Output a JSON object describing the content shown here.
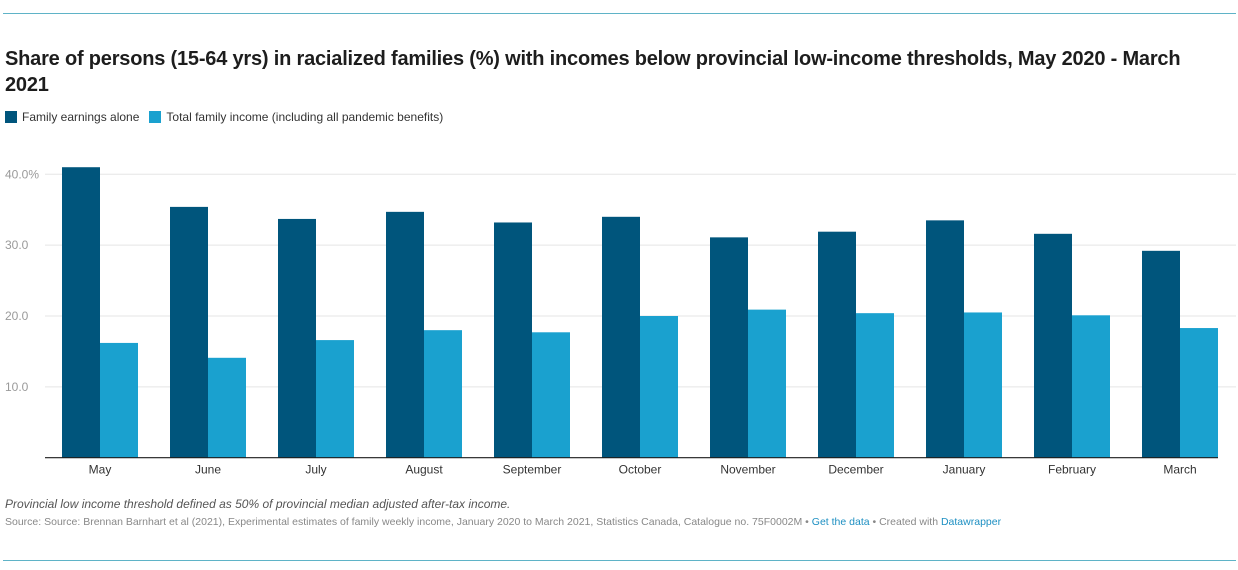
{
  "header": {
    "title": "Share of persons (15-64 yrs) in racialized families (%) with incomes below provincial low-income thresholds, May 2020 - March 2021"
  },
  "legend": [
    {
      "label": "Family earnings alone",
      "color": "#00557c"
    },
    {
      "label": "Total family income (including all pandemic benefits)",
      "color": "#1aa1cf"
    }
  ],
  "footer": {
    "note": "Provincial low income threshold defined as 50% of provincial median adjusted after-tax income.",
    "source_text": "Source: Source: Brennan Barnhart et al (2021), Experimental estimates of family weekly income, January 2020 to March 2021, Statistics Canada, Catalogue no. 75F0002M",
    "separator": " • ",
    "get_data_label": "Get the data",
    "created_with_prefix": "Created with ",
    "datawrapper_label": "Datawrapper"
  },
  "chart_data": {
    "type": "bar",
    "title": "Share of persons (15-64 yrs) in racialized families (%) with incomes below provincial low-income thresholds, May 2020 - March 2021",
    "xlabel": "",
    "ylabel": "",
    "ylim": [
      0,
      40
    ],
    "yticks": [
      10,
      20,
      30,
      40
    ],
    "ytick_labels": [
      "10.0",
      "20.0",
      "30.0",
      "40.0%"
    ],
    "grid": true,
    "legend_position": "top-left",
    "categories": [
      "May",
      "June",
      "July",
      "August",
      "September",
      "October",
      "November",
      "December",
      "January",
      "February",
      "March"
    ],
    "series": [
      {
        "name": "Family earnings alone",
        "color": "#00557c",
        "values": [
          41.0,
          35.4,
          33.7,
          34.7,
          33.2,
          34.0,
          31.1,
          31.9,
          33.5,
          31.6,
          29.2
        ]
      },
      {
        "name": "Total family income (including all pandemic benefits)",
        "color": "#1aa1cf",
        "values": [
          16.2,
          14.1,
          16.6,
          18.0,
          17.7,
          20.0,
          20.9,
          20.4,
          20.5,
          20.1,
          18.3
        ]
      }
    ]
  }
}
